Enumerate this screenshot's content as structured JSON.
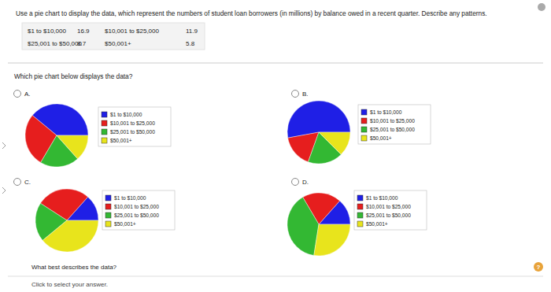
{
  "question": "Use a pie chart to display the data, which represent the numbers of student loan borrowers (in millions) by balance owed in a recent quarter. Describe any patterns.",
  "table": {
    "rows": [
      [
        {
          "label": "$1 to $10,000",
          "value": 16.9
        },
        {
          "label": "$10,001 to $25,000",
          "value": 11.9
        }
      ],
      [
        {
          "label": "$25,001 to $50,000",
          "value": 8.7
        },
        {
          "label": "$50,001+",
          "value": 5.8
        }
      ]
    ]
  },
  "prompt": "Which pie chart below displays the data?",
  "options": [
    "A.",
    "B.",
    "C.",
    "D."
  ],
  "chart_data": [
    {
      "type": "pie",
      "categories": [
        "$1 to $10,000",
        "$10,001 to $25,000",
        "$25,001 to $50,000",
        "$50,001+"
      ],
      "values": [
        16.9,
        11.9,
        8.7,
        5.8
      ],
      "colors": [
        "#1f1fe6",
        "#e61e1e",
        "#33b833",
        "#e8e41c"
      ],
      "legend": "right"
    },
    {
      "type": "pie",
      "categories": [
        "$1 to $10,000",
        "$10,001 to $25,000",
        "$25,001 to $50,000",
        "$50,001+"
      ],
      "values": [
        22.9,
        7.2,
        7.8,
        5.4
      ],
      "colors": [
        "#1f1fe6",
        "#e61e1e",
        "#33b833",
        "#e8e41c"
      ],
      "legend": "right"
    },
    {
      "type": "pie",
      "categories": [
        "$1 to $10,000",
        "$10,001 to $25,000",
        "$25,001 to $50,000",
        "$50,001+"
      ],
      "values": [
        5.8,
        11.9,
        8.7,
        16.9
      ],
      "colors": [
        "#1f1fe6",
        "#e61e1e",
        "#33b833",
        "#e8e41c"
      ],
      "legend": "right"
    },
    {
      "type": "pie",
      "categories": [
        "$1 to $10,000",
        "$10,001 to $25,000",
        "$25,001 to $50,000",
        "$50,001+"
      ],
      "values": [
        5.8,
        8.7,
        16.9,
        11.9
      ],
      "colors": [
        "#1f1fe6",
        "#e61e1e",
        "#33b833",
        "#e8e41c"
      ],
      "legend": "right"
    }
  ],
  "prompt2": "What best describes the data?",
  "answer_placeholder": "Click to select your answer.",
  "help": "?"
}
